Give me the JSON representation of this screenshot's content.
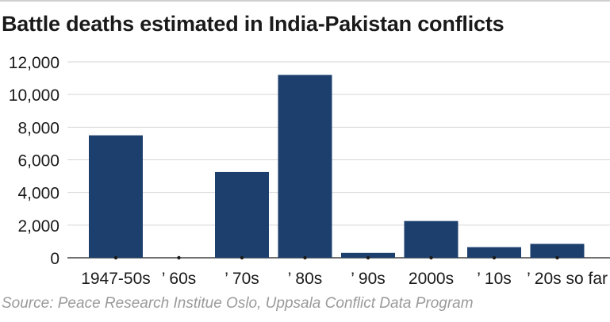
{
  "chart_data": {
    "type": "bar",
    "title": "Battle deaths estimated in India-Pakistan conflicts",
    "categories": [
      "1947-50s",
      "’ 60s",
      "’ 70s",
      "’ 80s",
      "’ 90s",
      "2000s",
      "’ 10s",
      "’ 20s so far"
    ],
    "values": [
      7500,
      0,
      5250,
      11200,
      300,
      2250,
      650,
      850
    ],
    "y_ticks": [
      0,
      2000,
      4000,
      6000,
      8000,
      10000,
      12000
    ],
    "y_tick_labels": [
      "0",
      "2,000",
      "4,000",
      "6,000",
      "8,000",
      "10,000",
      "12,000"
    ],
    "ylim": [
      0,
      12000
    ],
    "xlabel": "",
    "ylabel": "",
    "grid": true,
    "bar_color": "#1c3f6e",
    "source": "Source: Peace Research Institue Oslo, Uppsala Conflict Data Program"
  }
}
